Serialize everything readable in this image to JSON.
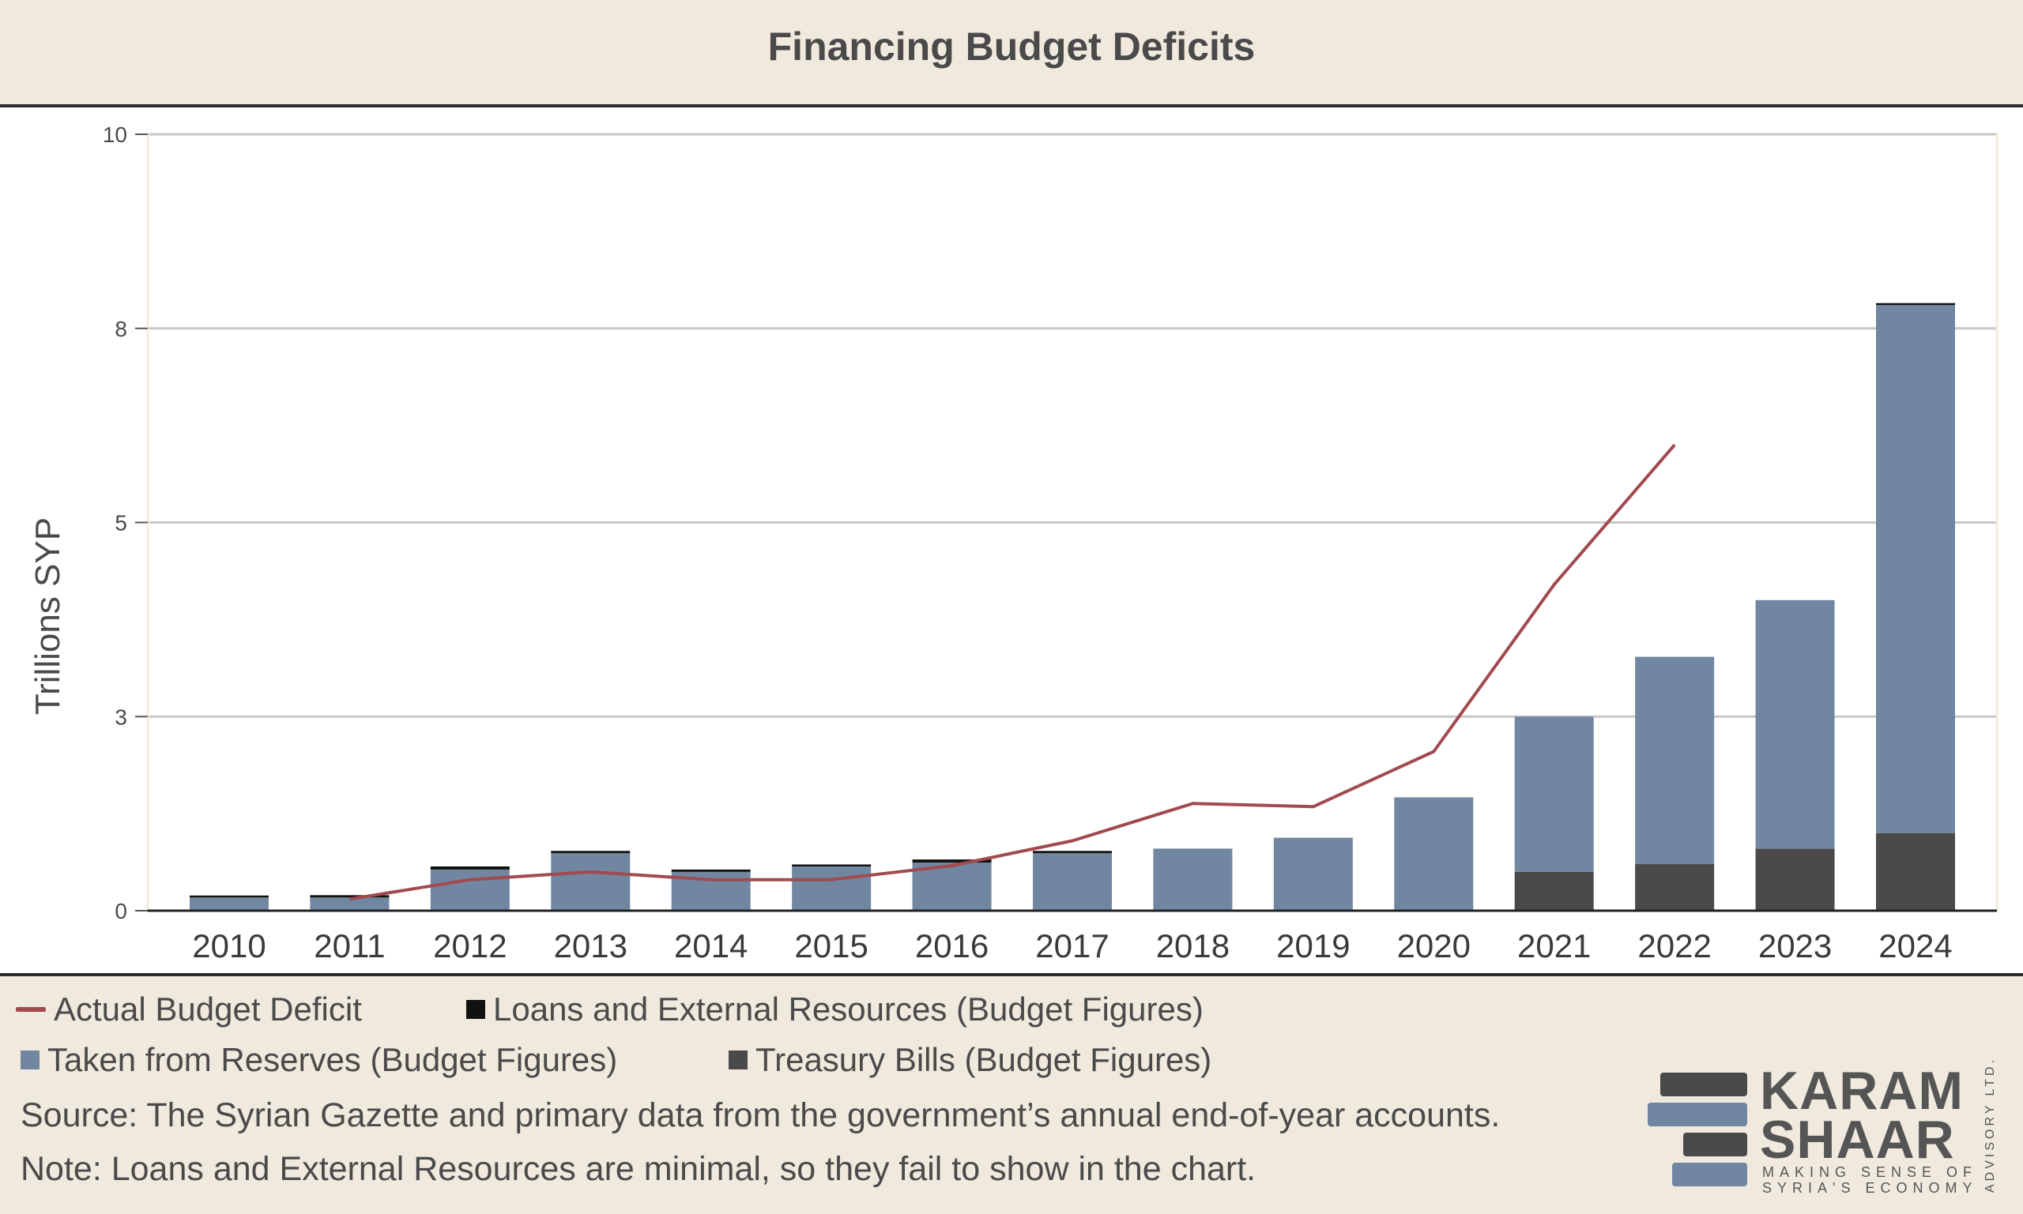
{
  "title": "Financing Budget Deficits",
  "chart_data": {
    "type": "bar",
    "stacked": true,
    "categories": [
      "2010",
      "2011",
      "2012",
      "2013",
      "2014",
      "2015",
      "2016",
      "2017",
      "2018",
      "2019",
      "2020",
      "2021",
      "2022",
      "2023",
      "2024"
    ],
    "ylabel": "Trillions SYP",
    "xlabel": "",
    "ylim": [
      0,
      10
    ],
    "yticks": [
      {
        "value": 0,
        "label": "0"
      },
      {
        "value": 2.5,
        "label": "3"
      },
      {
        "value": 5,
        "label": "5"
      },
      {
        "value": 7.5,
        "label": "8"
      },
      {
        "value": 10,
        "label": "10"
      }
    ],
    "grid": true,
    "legend_position": "bottom",
    "series": [
      {
        "name": "Treasury Bills (Budget Figures)",
        "kind": "bar",
        "color": "#4a4a4a",
        "values": [
          0,
          0,
          0,
          0,
          0,
          0,
          0,
          0,
          0,
          0,
          0,
          0.5,
          0.6,
          0.8,
          1.0
        ]
      },
      {
        "name": "Taken from Reserves (Budget Figures)",
        "kind": "bar",
        "color": "#7186a0",
        "values": [
          0.17,
          0.17,
          0.53,
          0.74,
          0.5,
          0.57,
          0.62,
          0.74,
          0.8,
          0.94,
          1.46,
          2.0,
          2.67,
          3.2,
          6.8
        ]
      },
      {
        "name": "Loans and External Resources (Budget Figures)",
        "kind": "bar",
        "color": "#111111",
        "values": [
          0.02,
          0.03,
          0.04,
          0.03,
          0.03,
          0.02,
          0.04,
          0.03,
          0,
          0,
          0,
          0,
          0,
          0,
          0.02
        ]
      },
      {
        "name": "Actual Budget Deficit",
        "kind": "line",
        "color": "#a14a4f",
        "values": [
          null,
          0.15,
          0.4,
          0.5,
          0.4,
          0.4,
          0.58,
          0.9,
          1.38,
          1.34,
          2.05,
          4.2,
          6.0,
          null,
          null
        ]
      }
    ]
  },
  "legend": {
    "row1": [
      "Actual Budget Deficit",
      "Loans and External Resources (Budget Figures)"
    ],
    "row2": [
      "Taken from Reserves (Budget Figures)",
      "Treasury Bills (Budget Figures)"
    ]
  },
  "footer": {
    "source": "Source: The Syrian Gazette and primary data from the government’s annual end-of-year accounts.",
    "note": "Note: Loans and External Resources are minimal, so they fail to show in the chart."
  },
  "logo": {
    "line1": "KARAM",
    "line2": "SHAAR",
    "tagline": "MAKING SENSE OF\nSYRIA'S ECONOMY",
    "side": "ADVISORY LTD.",
    "colors": [
      "#4a4a4a",
      "#7186a0"
    ]
  }
}
